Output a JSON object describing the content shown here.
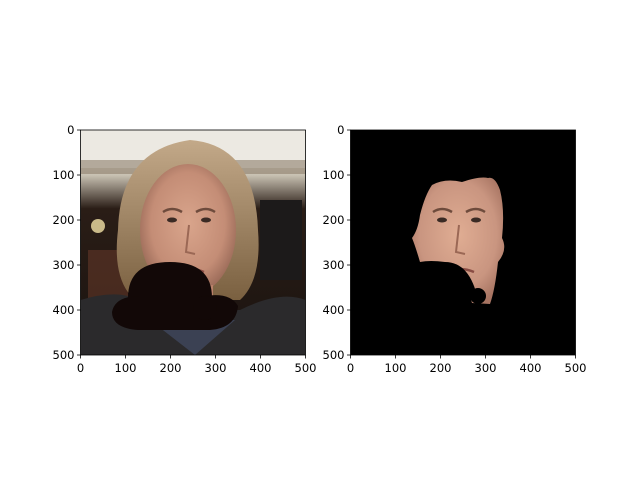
{
  "chart_data": [
    {
      "type": "image",
      "title": "",
      "xlabel": "",
      "ylabel": "",
      "xlim": [
        0,
        500
      ],
      "ylim": [
        500,
        0
      ],
      "x_ticks": [
        0,
        100,
        200,
        300,
        400,
        500
      ],
      "y_ticks": [
        0,
        100,
        200,
        300,
        400,
        500
      ],
      "x_tick_labels": [
        "0",
        "100",
        "200",
        "300",
        "400",
        "500"
      ],
      "y_tick_labels": [
        "0",
        "100",
        "200",
        "300",
        "400",
        "500"
      ],
      "grid": false,
      "image_content": "photo of face with occluding black bowler hat"
    },
    {
      "type": "image",
      "title": "",
      "xlabel": "",
      "ylabel": "",
      "xlim": [
        0,
        500
      ],
      "ylim": [
        500,
        0
      ],
      "x_ticks": [
        0,
        100,
        200,
        300,
        400,
        500
      ],
      "y_ticks": [
        0,
        100,
        200,
        300,
        400,
        500
      ],
      "x_tick_labels": [
        "0",
        "100",
        "200",
        "300",
        "400",
        "500"
      ],
      "y_tick_labels": [
        "0",
        "100",
        "200",
        "300",
        "400",
        "500"
      ],
      "grid": false,
      "image_content": "segmented face on black background"
    }
  ],
  "colors": {
    "background": "#ffffff",
    "axis": "#000000",
    "mask": "#000000",
    "hat": "#120807"
  }
}
